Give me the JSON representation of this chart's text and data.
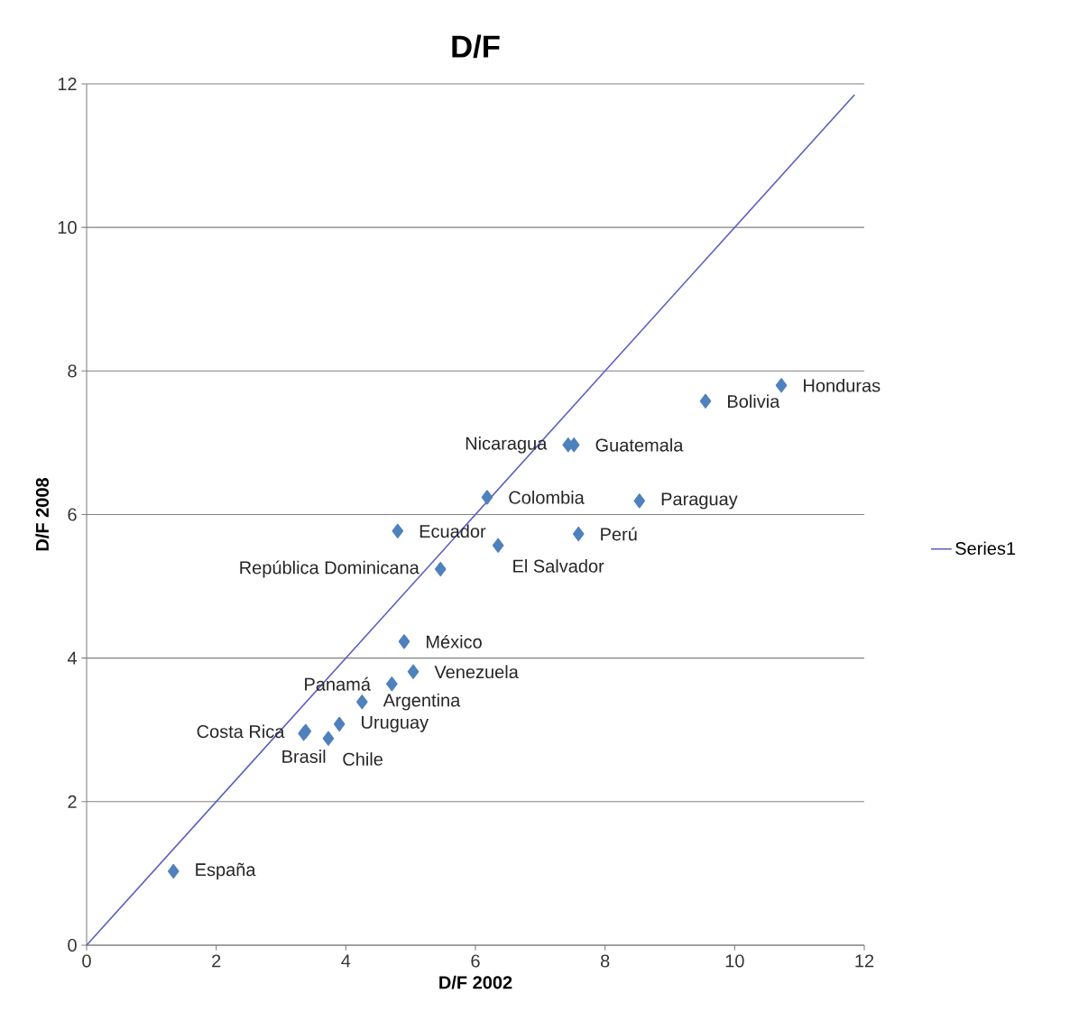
{
  "chart_data": {
    "type": "scatter",
    "title": "D/F",
    "xlabel": "D/F 2002",
    "ylabel": "D/F 2008",
    "xlim": [
      0,
      12
    ],
    "ylim": [
      0,
      12
    ],
    "xticks": [
      0,
      2,
      4,
      6,
      8,
      10,
      12
    ],
    "yticks": [
      0,
      2,
      4,
      6,
      8,
      10,
      12
    ],
    "grid": "y",
    "legend": "right",
    "marker": "diamond",
    "series": [
      {
        "color": "#4f81bd",
        "x": [
          10.72,
          9.55,
          7.52,
          7.43,
          6.18,
          8.53,
          4.8,
          7.59,
          6.35,
          5.46,
          4.9,
          5.04,
          4.71,
          4.25,
          3.9,
          3.38,
          3.35,
          3.73,
          1.34
        ],
        "values": [
          7.8,
          7.58,
          6.97,
          6.97,
          6.24,
          6.19,
          5.77,
          5.73,
          5.57,
          5.24,
          4.23,
          3.81,
          3.64,
          3.39,
          3.08,
          2.98,
          2.95,
          2.88,
          1.03
        ]
      },
      {
        "type": "line",
        "name": "Series1",
        "color": "#5b5fbf",
        "marker": "none",
        "x": [
          0,
          11.85
        ],
        "values": [
          0,
          11.85
        ]
      }
    ],
    "annotations": [
      {
        "text": "Honduras",
        "x": 10.72,
        "y": 7.8
      },
      {
        "text": "Bolivia",
        "x": 9.55,
        "y": 7.58
      },
      {
        "text": "Guatemala",
        "x": 7.52,
        "y": 6.97
      },
      {
        "text": "Nicaragua",
        "x": 7.43,
        "y": 6.97
      },
      {
        "text": "Colombia",
        "x": 6.18,
        "y": 6.24
      },
      {
        "text": "Paraguay",
        "x": 8.53,
        "y": 6.19
      },
      {
        "text": "Ecuador",
        "x": 4.8,
        "y": 5.77
      },
      {
        "text": "Perú",
        "x": 7.59,
        "y": 5.73
      },
      {
        "text": "El Salvador",
        "x": 6.35,
        "y": 5.57
      },
      {
        "text": "República Dominicana",
        "x": 5.46,
        "y": 5.24
      },
      {
        "text": "México",
        "x": 4.9,
        "y": 4.23
      },
      {
        "text": "Venezuela",
        "x": 5.04,
        "y": 3.81
      },
      {
        "text": "Panamá",
        "x": 4.71,
        "y": 3.64
      },
      {
        "text": "Argentina",
        "x": 4.25,
        "y": 3.39
      },
      {
        "text": "Uruguay",
        "x": 3.9,
        "y": 3.08
      },
      {
        "text": "Costa Rica",
        "x": 3.38,
        "y": 2.98
      },
      {
        "text": "Brasil",
        "x": 3.35,
        "y": 2.95
      },
      {
        "text": "Chile",
        "x": 3.73,
        "y": 2.88
      },
      {
        "text": "España",
        "x": 1.34,
        "y": 1.03
      }
    ]
  }
}
